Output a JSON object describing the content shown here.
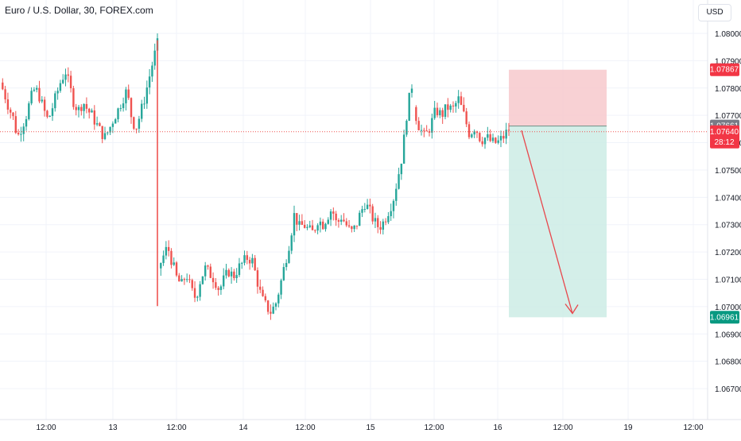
{
  "header": {
    "title": "Euro / U.S. Dollar, 30, FOREX.com",
    "currency_button": "USD"
  },
  "colors": {
    "up": "#26a69a",
    "down": "#ef5350",
    "grid": "#f0f3fa",
    "axis_text": "#131722",
    "stop_zone": "#f7c9cd",
    "target_zone": "#cdece5",
    "current_line": "#ef5350",
    "arrow": "#e8474c"
  },
  "chart_data": {
    "type": "candlestick",
    "symbol": "Euro / U.S. Dollar",
    "interval": "30",
    "source": "FOREX.com",
    "y_ticks": [
      "1.08000",
      "1.07900",
      "1.07800",
      "1.07700",
      "1.07600",
      "1.07500",
      "1.07400",
      "1.07300",
      "1.07200",
      "1.07100",
      "1.07000",
      "1.06900",
      "1.06800",
      "1.06700"
    ],
    "x_ticks": [
      "12:00",
      "13",
      "12:00",
      "14",
      "12:00",
      "15",
      "12:00",
      "16",
      "12:00",
      "19",
      "12:00"
    ],
    "price_labels": {
      "stop": "1.07867",
      "entry": "1.07661",
      "current": "1.07640",
      "countdown": "28:12",
      "target": "1.06961"
    },
    "position": {
      "type": "short",
      "entry": 1.07661,
      "stop": 1.07867,
      "target": 1.06961
    },
    "price_path": [
      [
        1.0782,
        1.0778,
        1.0773,
        1.0769,
        1.0762,
        1.0766,
        1.077,
        1.0776,
        1.078,
        1.0777,
        1.0772,
        1.0768,
        1.0773,
        1.0778,
        1.0783,
        1.0786,
        1.078,
        1.0774,
        1.0772,
        1.0775,
        1.0772,
        1.077,
        1.0767,
        1.0764,
        1.0762,
        1.0765,
        1.0769,
        1.0772,
        1.0776,
        1.0779,
        1.077,
        1.0765,
        1.077,
        1.0776,
        1.0783,
        1.079,
        1.0796
      ],
      [
        1.0714,
        1.0718,
        1.0722,
        1.0716,
        1.071,
        1.0708,
        1.0712,
        1.0706,
        1.0703,
        1.071,
        1.0714,
        1.0712,
        1.071,
        1.0706,
        1.071,
        1.0713,
        1.0711,
        1.0714,
        1.0716,
        1.0718,
        1.0717,
        1.071,
        1.0703,
        1.07,
        1.0698,
        1.0701,
        1.0708,
        1.0716,
        1.0724,
        1.0734,
        1.0729,
        1.073,
        1.0728,
        1.0727,
        1.0732,
        1.073,
        1.0733,
        1.0736,
        1.073,
        1.0733,
        1.073,
        1.0727,
        1.0729,
        1.0734,
        1.0738,
        1.0735,
        1.0731,
        1.0729,
        1.0731,
        1.0735,
        1.0739,
        1.0747,
        1.0756,
        1.0772,
        1.0781
      ],
      [
        1.0773,
        1.0766,
        1.0762,
        1.0766,
        1.0772,
        1.077,
        1.0773,
        1.0772,
        1.0776,
        1.077,
        1.0763,
        1.0766,
        1.0761,
        1.0762,
        1.076,
        1.076,
        1.0762,
        1.0765
      ]
    ]
  }
}
